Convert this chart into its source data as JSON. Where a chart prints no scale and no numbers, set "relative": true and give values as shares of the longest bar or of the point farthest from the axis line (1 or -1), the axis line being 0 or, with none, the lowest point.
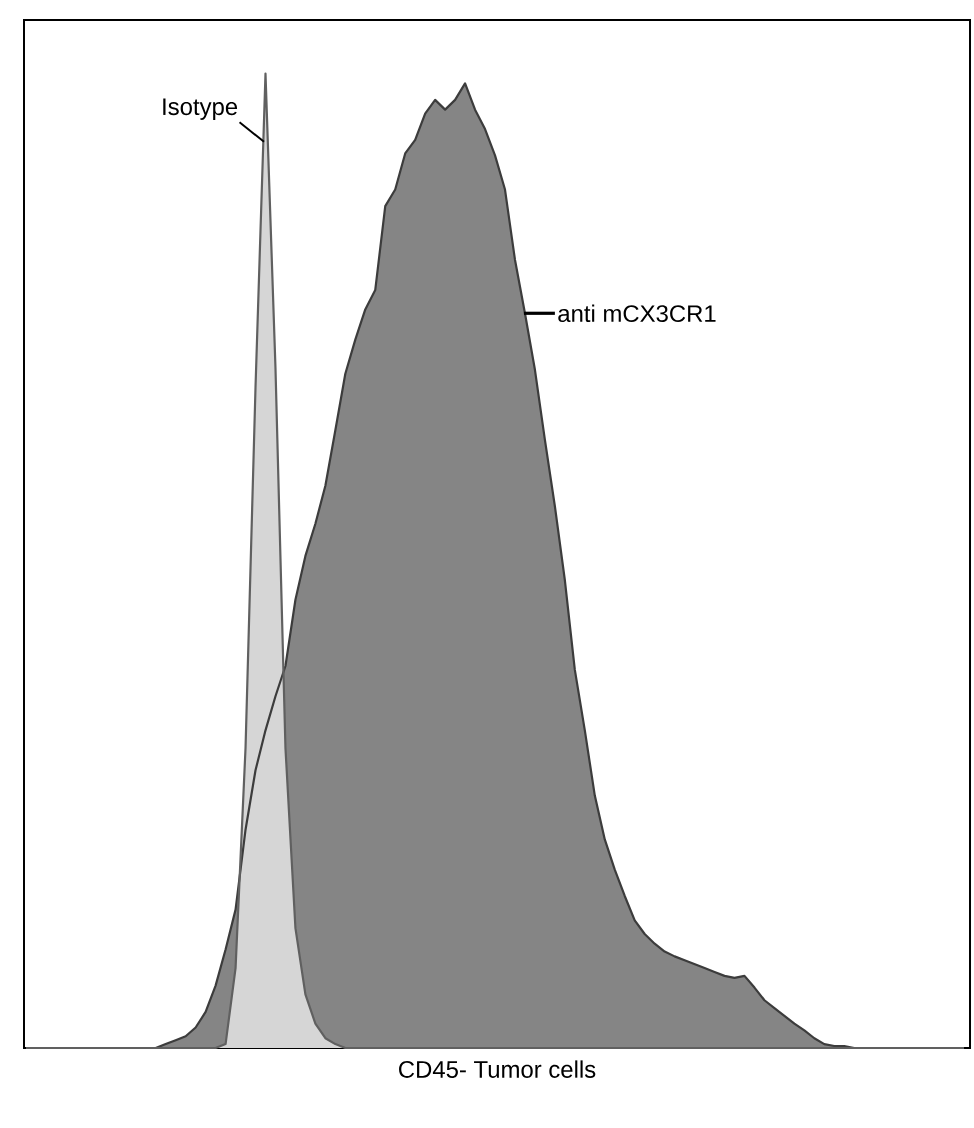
{
  "chart_data": {
    "type": "area",
    "relative": true,
    "xlabel": "CD45- Tumor cells",
    "legend": false,
    "categories": [
      null,
      null,
      null,
      null,
      null,
      null,
      null,
      null,
      null,
      null,
      null,
      null,
      null,
      null,
      null,
      null,
      null,
      null,
      null,
      null,
      null,
      null,
      null,
      null,
      null,
      null,
      null,
      null,
      null,
      null,
      null,
      null,
      null,
      null,
      null,
      null,
      null,
      null,
      null,
      null,
      null,
      null,
      null,
      null,
      null,
      null,
      null,
      null,
      null,
      null,
      null,
      null,
      null,
      null,
      null,
      null,
      null,
      null,
      null,
      null,
      null,
      null,
      null,
      null,
      null,
      null,
      null,
      null,
      null,
      null,
      null,
      null,
      null,
      null,
      null,
      null,
      null,
      null,
      null,
      null,
      null,
      null,
      null,
      null,
      null,
      null,
      null,
      null,
      null,
      null,
      null,
      null,
      null,
      null,
      null
    ],
    "series": [
      {
        "name": "anti mCX3CR1",
        "color": "#858585",
        "values": [
          0,
          0,
          0,
          0,
          0,
          0,
          0,
          0,
          0,
          0,
          0,
          0,
          0,
          0,
          0.004,
          0.008,
          0.012,
          0.021,
          0.037,
          0.064,
          0.101,
          0.142,
          0.224,
          0.285,
          0.326,
          0.361,
          0.392,
          0.46,
          0.505,
          0.538,
          0.577,
          0.634,
          0.692,
          0.727,
          0.758,
          0.778,
          0.864,
          0.881,
          0.918,
          0.932,
          0.959,
          0.973,
          0.963,
          0.973,
          0.99,
          0.963,
          0.943,
          0.916,
          0.881,
          0.809,
          0.754,
          0.696,
          0.624,
          0.556,
          0.48,
          0.388,
          0.326,
          0.259,
          0.214,
          0.183,
          0.156,
          0.131,
          0.117,
          0.107,
          0.099,
          0.094,
          0.09,
          0.086,
          0.082,
          0.078,
          0.074,
          0.072,
          0.074,
          0.062,
          0.049,
          0.041,
          0.033,
          0.025,
          0.018,
          0.01,
          0.004,
          0.002,
          0.002,
          0,
          0,
          0,
          0,
          0,
          0,
          0,
          0,
          0,
          0,
          0,
          0
        ]
      },
      {
        "name": "Isotype",
        "color": "#d6d6d6",
        "values": [
          0,
          0,
          0,
          0,
          0,
          0,
          0,
          0,
          0,
          0,
          0,
          0,
          0,
          0,
          0,
          0,
          0,
          0,
          0,
          0,
          0.004,
          0.082,
          0.308,
          0.678,
          1,
          0.698,
          0.308,
          0.123,
          0.055,
          0.025,
          0.01,
          0.004,
          0,
          0,
          0,
          0,
          0,
          0,
          0,
          0,
          0,
          0,
          0,
          0,
          0,
          0,
          0,
          0,
          0,
          0,
          0,
          0,
          0,
          0,
          0,
          0,
          0,
          0,
          0,
          0,
          0,
          0,
          0,
          0,
          0,
          0,
          0,
          0,
          0,
          0,
          0,
          0,
          0,
          0,
          0,
          0,
          0,
          0,
          0,
          0,
          0,
          0,
          0,
          0,
          0,
          0,
          0,
          0,
          0,
          0,
          0,
          0,
          0,
          0,
          0
        ]
      }
    ]
  }
}
